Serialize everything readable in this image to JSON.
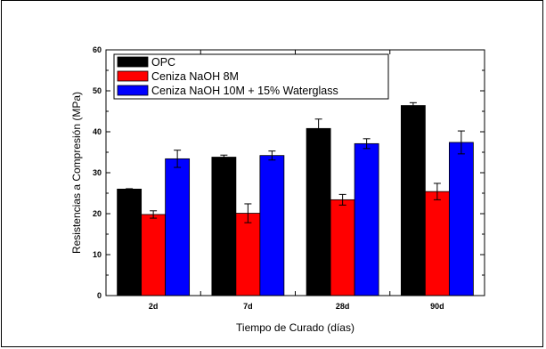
{
  "chart_data": {
    "type": "bar",
    "xlabel": "Tiempo de Curado (días)",
    "ylabel": "Resistencias a Compresión (MPa)",
    "ylim": [
      0,
      60
    ],
    "yticks": [
      0,
      10,
      20,
      30,
      40,
      50,
      60
    ],
    "categories": [
      "2d",
      "7d",
      "28d",
      "90d"
    ],
    "series": [
      {
        "name": "OPC",
        "color": "#000000",
        "values": [
          26.0,
          33.8,
          40.8,
          46.4
        ],
        "errors": [
          0.1,
          0.5,
          2.3,
          0.7
        ]
      },
      {
        "name": "Ceniza NaOH 8M",
        "color": "#ff0000",
        "values": [
          19.8,
          20.1,
          23.4,
          25.4
        ],
        "errors": [
          0.9,
          2.3,
          1.3,
          2.0
        ]
      },
      {
        "name": "Ceniza NaOH 10M + 15% Waterglass",
        "color": "#0000ff",
        "values": [
          33.4,
          34.2,
          37.1,
          37.4
        ],
        "errors": [
          2.1,
          1.1,
          1.2,
          2.8
        ]
      }
    ],
    "legend_position": "top-left",
    "grid": false
  }
}
